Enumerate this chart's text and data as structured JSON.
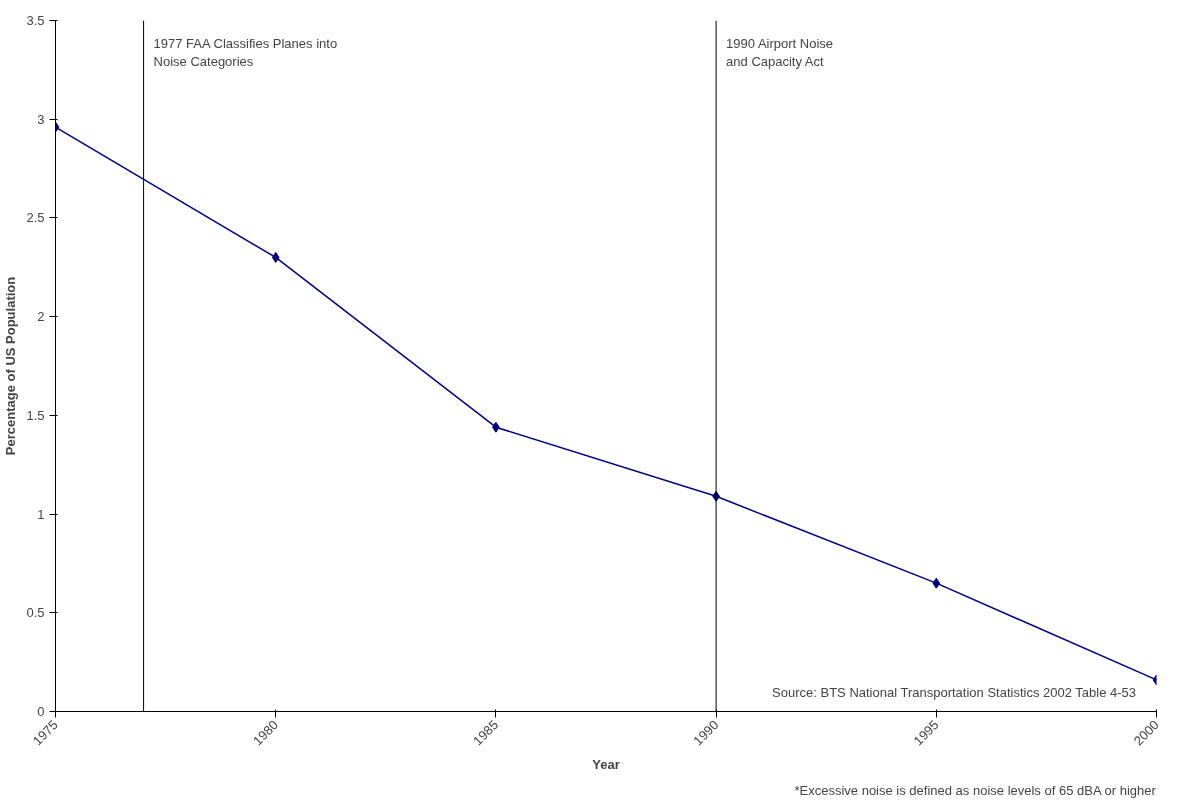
{
  "chart_data": {
    "type": "line",
    "xlabel": "Year",
    "ylabel": "Percentage of US Population",
    "x": [
      1975,
      1980,
      1985,
      1990,
      1995,
      2000
    ],
    "series": [
      {
        "color": "#000080",
        "values": [
          2.96,
          2.3,
          1.44,
          1.09,
          0.65,
          0.16
        ]
      }
    ],
    "xlim": [
      1975,
      2000
    ],
    "xticks": [
      1975,
      1980,
      1985,
      1990,
      1995,
      2000
    ],
    "ylim": [
      0,
      3.5
    ],
    "yticks": [
      0,
      0.5,
      1,
      1.5,
      2,
      2.5,
      3,
      3.5
    ],
    "marker": "diamond",
    "line_style": "solid",
    "grid": false,
    "ref_lines": [
      {
        "axis": "x",
        "value": 1977,
        "label": "1977 FAA Classifies Planes into\nNoise Categories",
        "color": "#000000"
      },
      {
        "axis": "x",
        "value": 1990,
        "label": "1990 Airport Noise\nand Capacity Act",
        "color": "#000000"
      }
    ],
    "annotations": [
      "Source: BTS National Transportation Statistics 2002 Table 4-53",
      "*Excessive noise is defined as noise levels of 65 dBA or higher"
    ]
  }
}
